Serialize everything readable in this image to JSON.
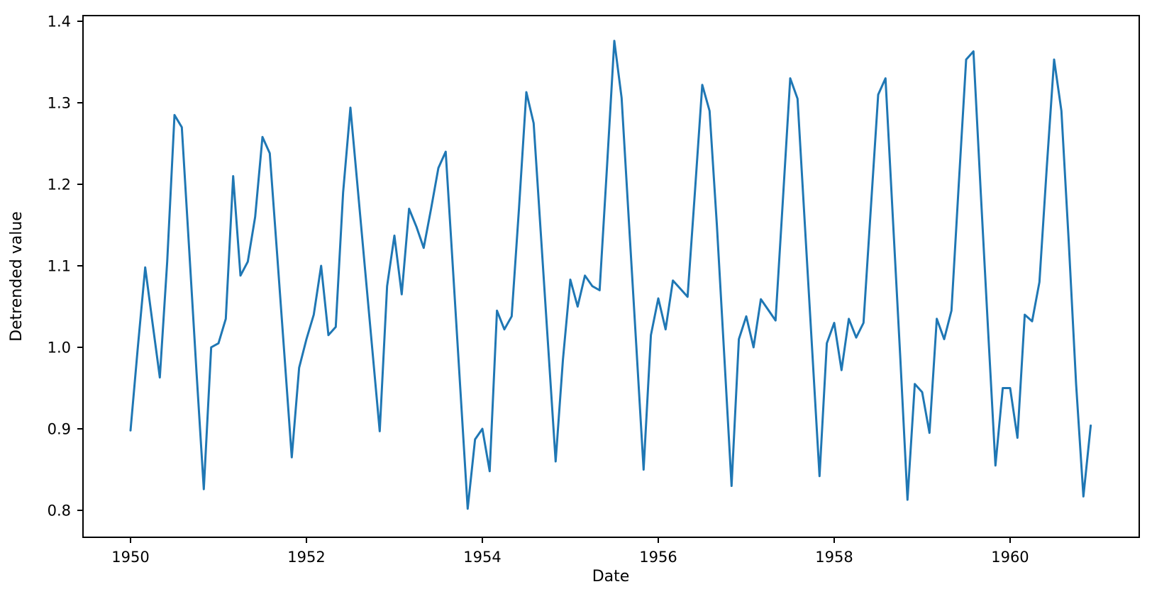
{
  "chart_data": {
    "type": "line",
    "title": "",
    "xlabel": "Date",
    "ylabel": "Detrended value",
    "legend": null,
    "grid": false,
    "background_color": "#ffffff",
    "line_color": "#1f77b4",
    "spine_color": "#000000",
    "x_start": "1950-01",
    "x_frequency": "monthly",
    "x_tick_years": [
      1950,
      1952,
      1954,
      1956,
      1958,
      1960
    ],
    "y_ticks": [
      0.8,
      0.9,
      1.0,
      1.1,
      1.2,
      1.3,
      1.4
    ],
    "ylim": [
      0.767,
      1.407
    ],
    "xlim_months_from_start": [
      -6.5,
      137.6
    ],
    "values_by_year": {
      "1950": [
        0.898,
        1.0,
        1.098,
        1.03,
        0.963,
        1.105,
        1.285,
        1.27,
        1.12,
        0.97,
        0.826,
        1.0
      ],
      "1951": [
        1.005,
        1.035,
        1.21,
        1.088,
        1.105,
        1.16,
        1.258,
        1.238,
        1.114,
        0.99,
        0.865,
        0.975
      ],
      "1952": [
        1.01,
        1.04,
        1.1,
        1.015,
        1.025,
        1.19,
        1.294,
        1.195,
        1.095,
        0.996,
        0.897,
        1.075
      ],
      "1953": [
        1.137,
        1.065,
        1.17,
        1.148,
        1.122,
        1.17,
        1.22,
        1.24,
        1.094,
        0.948,
        0.802,
        0.887
      ],
      "1954": [
        0.9,
        0.848,
        1.045,
        1.022,
        1.038,
        1.17,
        1.313,
        1.275,
        1.137,
        0.998,
        0.86,
        0.985
      ],
      "1955": [
        1.083,
        1.05,
        1.088,
        1.075,
        1.07,
        1.22,
        1.376,
        1.306,
        1.154,
        1.002,
        0.85,
        1.015
      ],
      "1956": [
        1.06,
        1.022,
        1.082,
        1.072,
        1.062,
        1.19,
        1.322,
        1.29,
        1.15,
        0.99,
        0.83,
        1.01
      ],
      "1957": [
        1.038,
        1.0,
        1.059,
        1.046,
        1.033,
        1.18,
        1.33,
        1.305,
        1.151,
        0.996,
        0.842,
        1.005
      ],
      "1958": [
        1.03,
        0.972,
        1.035,
        1.012,
        1.03,
        1.17,
        1.31,
        1.33,
        1.16,
        0.99,
        0.813,
        0.955
      ],
      "1959": [
        0.945,
        0.895,
        1.035,
        1.01,
        1.045,
        1.2,
        1.353,
        1.363,
        1.19,
        1.02,
        0.855,
        0.95
      ],
      "1960": [
        0.95,
        0.889,
        1.04,
        1.032,
        1.08,
        1.22,
        1.353,
        1.29,
        1.13,
        0.955,
        0.817,
        0.904
      ]
    }
  }
}
